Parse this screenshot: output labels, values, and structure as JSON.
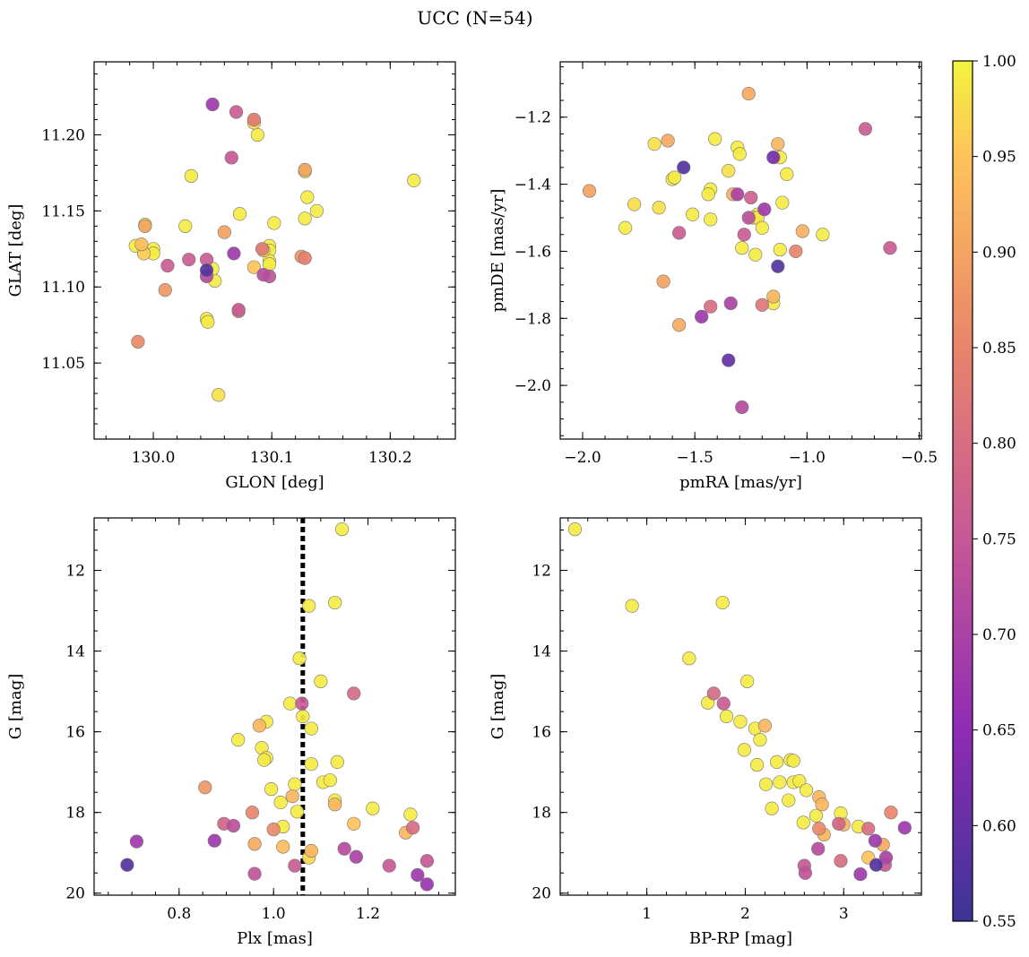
{
  "suptitle": "UCC (N=54)",
  "colorbar": {
    "min": 0.55,
    "max": 1.0,
    "ticks": [
      0.55,
      0.6,
      0.65,
      0.7,
      0.75,
      0.8,
      0.85,
      0.9,
      0.95,
      1.0
    ],
    "tick_labels": [
      "0.55",
      "0.60",
      "0.65",
      "0.70",
      "0.75",
      "0.80",
      "0.85",
      "0.90",
      "0.95",
      "1.00"
    ],
    "colormap": "plasma (clipped)"
  },
  "chart_data": [
    {
      "id": "glon_glat",
      "type": "scatter",
      "xlabel": "GLON [deg]",
      "ylabel": "GLAT [deg]",
      "xlim": [
        129.95,
        130.255
      ],
      "ylim": [
        11.0,
        11.248
      ],
      "y_inverted": false,
      "xticks": [
        130.0,
        130.1,
        130.2
      ],
      "xtick_labels": [
        "130.0",
        "130.1",
        "130.2"
      ],
      "x_minor_step": 0.02,
      "yticks": [
        11.05,
        11.1,
        11.15,
        11.2
      ],
      "ytick_labels": [
        "11.05",
        "11.10",
        "11.15",
        "11.20"
      ],
      "y_minor_step": 0.01,
      "points": [
        [
          130.05,
          11.22,
          0.68
        ],
        [
          130.07,
          11.215,
          0.76
        ],
        [
          130.085,
          11.21,
          0.83
        ],
        [
          130.085,
          11.208,
          0.97
        ],
        [
          130.088,
          11.2,
          0.99
        ],
        [
          130.066,
          11.185,
          0.75
        ],
        [
          130.032,
          11.173,
          0.99
        ],
        [
          130.22,
          11.17,
          0.99
        ],
        [
          130.128,
          11.177,
          0.9
        ],
        [
          130.128,
          11.176,
          0.99
        ],
        [
          130.13,
          11.159,
          0.99
        ],
        [
          130.073,
          11.148,
          0.99
        ],
        [
          130.138,
          11.15,
          0.99
        ],
        [
          130.128,
          11.145,
          0.99
        ],
        [
          130.102,
          11.142,
          0.99
        ],
        [
          129.993,
          11.14,
          0.9
        ],
        [
          129.993,
          11.141,
          0.99
        ],
        [
          130.027,
          11.14,
          0.99
        ],
        [
          130.06,
          11.136,
          0.9
        ],
        [
          129.985,
          11.127,
          0.99
        ],
        [
          129.99,
          11.128,
          0.94
        ],
        [
          130.0,
          11.125,
          0.99
        ],
        [
          130.0,
          11.122,
          0.99
        ],
        [
          129.992,
          11.122,
          0.96
        ],
        [
          130.098,
          11.127,
          0.99
        ],
        [
          130.098,
          11.124,
          0.99
        ],
        [
          130.092,
          11.125,
          0.83
        ],
        [
          130.093,
          11.124,
          0.97
        ],
        [
          130.068,
          11.122,
          0.68
        ],
        [
          130.125,
          11.12,
          0.88
        ],
        [
          130.128,
          11.119,
          0.84
        ],
        [
          130.03,
          11.118,
          0.76
        ],
        [
          130.045,
          11.118,
          0.76
        ],
        [
          130.012,
          11.114,
          0.76
        ],
        [
          130.098,
          11.117,
          0.99
        ],
        [
          130.098,
          11.115,
          0.99
        ],
        [
          130.085,
          11.113,
          0.95
        ],
        [
          130.05,
          11.112,
          0.99
        ],
        [
          130.045,
          11.111,
          0.58
        ],
        [
          130.045,
          11.107,
          0.72
        ],
        [
          130.093,
          11.108,
          0.72
        ],
        [
          130.098,
          11.107,
          0.74
        ],
        [
          130.052,
          11.104,
          0.99
        ],
        [
          130.01,
          11.098,
          0.88
        ],
        [
          130.072,
          11.084,
          0.82
        ],
        [
          130.072,
          11.085,
          0.76
        ],
        [
          130.045,
          11.079,
          0.99
        ],
        [
          130.046,
          11.077,
          0.99
        ],
        [
          129.987,
          11.064,
          0.86
        ],
        [
          130.055,
          11.029,
          0.98
        ]
      ]
    },
    {
      "id": "pmra_pmde",
      "type": "scatter",
      "xlabel": "pmRA [mas/yr]",
      "ylabel": "pmDE [mas/yr]",
      "xlim": [
        -2.1,
        -0.49
      ],
      "ylim": [
        -2.16,
        -1.035
      ],
      "y_inverted": false,
      "xticks": [
        -2.0,
        -1.5,
        -1.0,
        -0.5
      ],
      "xtick_labels": [
        "−2.0",
        "−1.5",
        "−1.0",
        "−0.5"
      ],
      "x_minor_step": 0.1,
      "yticks": [
        -2.0,
        -1.8,
        -1.6,
        -1.4,
        -1.2
      ],
      "ytick_labels": [
        "−2.0",
        "−1.8",
        "−1.6",
        "−1.4",
        "−1.2"
      ],
      "y_minor_step": 0.05,
      "points": [
        [
          -1.26,
          -1.13,
          0.91
        ],
        [
          -0.74,
          -1.235,
          0.76
        ],
        [
          -1.62,
          -1.27,
          0.91
        ],
        [
          -1.68,
          -1.28,
          0.98
        ],
        [
          -1.41,
          -1.265,
          0.99
        ],
        [
          -1.31,
          -1.29,
          0.99
        ],
        [
          -1.3,
          -1.31,
          0.99
        ],
        [
          -1.13,
          -1.28,
          0.93
        ],
        [
          -1.12,
          -1.32,
          0.99
        ],
        [
          -1.15,
          -1.32,
          0.62
        ],
        [
          -1.55,
          -1.35,
          0.58
        ],
        [
          -1.35,
          -1.36,
          0.98
        ],
        [
          -1.09,
          -1.37,
          0.99
        ],
        [
          -1.6,
          -1.385,
          0.99
        ],
        [
          -1.59,
          -1.38,
          0.99
        ],
        [
          -1.97,
          -1.42,
          0.9
        ],
        [
          -1.43,
          -1.415,
          0.99
        ],
        [
          -1.33,
          -1.43,
          0.92
        ],
        [
          -1.44,
          -1.43,
          0.99
        ],
        [
          -1.31,
          -1.43,
          0.7
        ],
        [
          -1.25,
          -1.44,
          0.77
        ],
        [
          -1.11,
          -1.455,
          0.99
        ],
        [
          -1.77,
          -1.46,
          0.98
        ],
        [
          -1.66,
          -1.47,
          0.98
        ],
        [
          -1.19,
          -1.475,
          0.68
        ],
        [
          -1.22,
          -1.49,
          0.99
        ],
        [
          -1.51,
          -1.49,
          0.99
        ],
        [
          -1.26,
          -1.5,
          0.73
        ],
        [
          -1.24,
          -1.5,
          0.99
        ],
        [
          -1.43,
          -1.505,
          0.99
        ],
        [
          -1.22,
          -1.5,
          0.99
        ],
        [
          -1.2,
          -1.53,
          0.99
        ],
        [
          -1.81,
          -1.53,
          0.99
        ],
        [
          -1.02,
          -1.54,
          0.92
        ],
        [
          -1.57,
          -1.545,
          0.76
        ],
        [
          -1.28,
          -1.55,
          0.76
        ],
        [
          -0.93,
          -1.55,
          0.99
        ],
        [
          -1.29,
          -1.59,
          0.99
        ],
        [
          -1.12,
          -1.595,
          0.99
        ],
        [
          -1.05,
          -1.6,
          0.85
        ],
        [
          -0.63,
          -1.59,
          0.76
        ],
        [
          -1.23,
          -1.61,
          0.99
        ],
        [
          -1.13,
          -1.645,
          0.58
        ],
        [
          -1.64,
          -1.69,
          0.9
        ],
        [
          -1.15,
          -1.735,
          0.93
        ],
        [
          -1.15,
          -1.755,
          0.99
        ],
        [
          -1.34,
          -1.755,
          0.7
        ],
        [
          -1.43,
          -1.765,
          0.8
        ],
        [
          -1.2,
          -1.76,
          0.82
        ],
        [
          -1.47,
          -1.795,
          0.68
        ],
        [
          -1.57,
          -1.82,
          0.91
        ],
        [
          -1.35,
          -1.925,
          0.6
        ],
        [
          -1.29,
          -2.065,
          0.72
        ]
      ]
    },
    {
      "id": "plx_g",
      "type": "scatter",
      "xlabel": "Plx [mas]",
      "ylabel": "G [mag]",
      "xlim": [
        0.62,
        1.385
      ],
      "ylim": [
        10.7,
        20.05
      ],
      "y_inverted": true,
      "vline": 1.062,
      "xticks": [
        0.8,
        1.0,
        1.2
      ],
      "xtick_labels": [
        "0.8",
        "1.0",
        "1.2"
      ],
      "x_minor_step": 0.05,
      "yticks": [
        12,
        14,
        16,
        18,
        20
      ],
      "ytick_labels": [
        "12",
        "14",
        "16",
        "18",
        "20"
      ],
      "y_minor_step": 0.5,
      "points": [
        [
          1.145,
          10.98,
          0.99
        ],
        [
          1.075,
          12.88,
          0.99
        ],
        [
          1.13,
          12.8,
          0.99
        ],
        [
          1.055,
          14.18,
          0.99
        ],
        [
          1.1,
          14.75,
          0.99
        ],
        [
          1.17,
          15.05,
          0.79
        ],
        [
          1.035,
          15.3,
          0.99
        ],
        [
          1.06,
          15.3,
          0.76
        ],
        [
          1.062,
          15.62,
          0.99
        ],
        [
          0.985,
          15.75,
          0.99
        ],
        [
          0.97,
          15.85,
          0.93
        ],
        [
          1.08,
          15.92,
          0.99
        ],
        [
          0.925,
          16.2,
          0.99
        ],
        [
          0.975,
          16.4,
          0.99
        ],
        [
          0.985,
          16.65,
          0.99
        ],
        [
          0.98,
          16.7,
          0.99
        ],
        [
          1.135,
          16.75,
          0.99
        ],
        [
          1.08,
          16.8,
          0.99
        ],
        [
          1.105,
          17.25,
          0.99
        ],
        [
          1.12,
          17.2,
          0.99
        ],
        [
          1.045,
          17.3,
          0.99
        ],
        [
          0.855,
          17.38,
          0.88
        ],
        [
          0.995,
          17.42,
          0.99
        ],
        [
          1.04,
          17.6,
          0.93
        ],
        [
          1.13,
          17.7,
          0.99
        ],
        [
          1.015,
          17.75,
          0.99
        ],
        [
          1.13,
          17.8,
          0.93
        ],
        [
          1.21,
          17.9,
          0.99
        ],
        [
          1.05,
          17.98,
          0.99
        ],
        [
          0.955,
          18.0,
          0.85
        ],
        [
          1.29,
          18.05,
          0.99
        ],
        [
          1.17,
          18.28,
          0.95
        ],
        [
          0.895,
          18.28,
          0.78
        ],
        [
          0.915,
          18.33,
          0.73
        ],
        [
          1.02,
          18.35,
          0.99
        ],
        [
          1.295,
          18.38,
          0.8
        ],
        [
          1.0,
          18.42,
          0.86
        ],
        [
          1.28,
          18.5,
          0.93
        ],
        [
          0.71,
          18.72,
          0.68
        ],
        [
          0.875,
          18.7,
          0.68
        ],
        [
          0.96,
          18.78,
          0.91
        ],
        [
          1.08,
          18.95,
          0.93
        ],
        [
          1.02,
          18.85,
          0.94
        ],
        [
          1.15,
          18.9,
          0.72
        ],
        [
          1.175,
          19.1,
          0.7
        ],
        [
          1.075,
          19.12,
          0.97
        ],
        [
          1.325,
          19.2,
          0.75
        ],
        [
          0.69,
          19.3,
          0.58
        ],
        [
          1.245,
          19.32,
          0.75
        ],
        [
          1.045,
          19.32,
          0.76
        ],
        [
          0.96,
          19.52,
          0.74
        ],
        [
          1.305,
          19.55,
          0.68
        ],
        [
          1.325,
          19.78,
          0.67
        ]
      ]
    },
    {
      "id": "bprp_g",
      "type": "scatter",
      "xlabel": "BP-RP [mag]",
      "ylabel": "G [mag]",
      "xlim": [
        0.12,
        3.79
      ],
      "ylim": [
        10.7,
        20.05
      ],
      "y_inverted": true,
      "xticks": [
        1,
        2,
        3
      ],
      "xtick_labels": [
        "1",
        "2",
        "3"
      ],
      "x_minor_step": 0.2,
      "yticks": [
        12,
        14,
        16,
        18,
        20
      ],
      "ytick_labels": [
        "12",
        "14",
        "16",
        "18",
        "20"
      ],
      "y_minor_step": 0.5,
      "points": [
        [
          0.27,
          10.98,
          0.99
        ],
        [
          0.85,
          12.88,
          0.99
        ],
        [
          1.77,
          12.8,
          0.99
        ],
        [
          1.43,
          14.18,
          0.99
        ],
        [
          2.02,
          14.75,
          0.99
        ],
        [
          1.68,
          15.05,
          0.79
        ],
        [
          1.62,
          15.28,
          0.99
        ],
        [
          1.78,
          15.3,
          0.76
        ],
        [
          1.81,
          15.62,
          0.99
        ],
        [
          1.95,
          15.75,
          0.99
        ],
        [
          2.2,
          15.85,
          0.93
        ],
        [
          2.1,
          15.92,
          0.99
        ],
        [
          2.15,
          16.2,
          0.99
        ],
        [
          1.99,
          16.45,
          0.99
        ],
        [
          2.46,
          16.7,
          0.99
        ],
        [
          2.49,
          16.72,
          0.99
        ],
        [
          2.32,
          16.75,
          0.99
        ],
        [
          2.12,
          16.82,
          0.99
        ],
        [
          2.21,
          17.3,
          0.99
        ],
        [
          2.35,
          17.25,
          0.99
        ],
        [
          2.49,
          17.25,
          0.99
        ],
        [
          2.55,
          17.22,
          0.99
        ],
        [
          2.62,
          17.45,
          0.99
        ],
        [
          2.44,
          17.7,
          0.99
        ],
        [
          2.75,
          17.62,
          0.93
        ],
        [
          2.27,
          17.9,
          0.99
        ],
        [
          2.78,
          17.8,
          0.93
        ],
        [
          2.72,
          18.08,
          0.99
        ],
        [
          2.97,
          18.02,
          0.99
        ],
        [
          3.48,
          18.0,
          0.85
        ],
        [
          2.59,
          18.25,
          0.99
        ],
        [
          2.95,
          18.28,
          0.78
        ],
        [
          3.0,
          18.3,
          0.93
        ],
        [
          3.15,
          18.35,
          0.99
        ],
        [
          3.25,
          18.4,
          0.8
        ],
        [
          2.75,
          18.4,
          0.86
        ],
        [
          2.8,
          18.55,
          0.93
        ],
        [
          3.62,
          18.38,
          0.68
        ],
        [
          3.32,
          18.7,
          0.68
        ],
        [
          3.4,
          18.8,
          0.91
        ],
        [
          2.74,
          18.9,
          0.72
        ],
        [
          2.97,
          19.2,
          0.8
        ],
        [
          3.25,
          19.12,
          0.95
        ],
        [
          3.43,
          19.12,
          0.7
        ],
        [
          2.6,
          19.32,
          0.75
        ],
        [
          3.33,
          19.3,
          0.58
        ],
        [
          3.42,
          19.3,
          0.75
        ],
        [
          2.61,
          19.5,
          0.74
        ],
        [
          3.17,
          19.53,
          0.68
        ]
      ]
    }
  ]
}
